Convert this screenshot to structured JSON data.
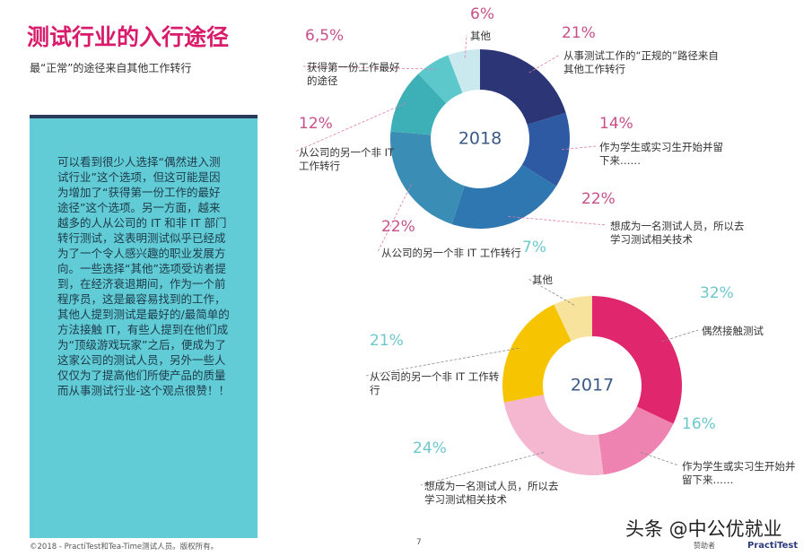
{
  "header": {
    "title": "测试行业的入行途径",
    "subtitle": "最“正常”的途径来自其他工作转行"
  },
  "sidebar": {
    "text": "可以看到很少人选择“偶然进入测试行业”这个选项，但这可能是因为增加了“获得第一份工作的最好途径”这个选项。另一方面，越来越多的人从公司的 IT 和非 IT 部门转行测试，这表明测试似乎已经成为了一个令人感兴趣的职业发展方向。一些选择“其他”选项受访者提到，在经济衰退期间，作为一个前程序员，这是最容易找到的工作，其他人提到测试是最好的/最简单的方法接触 IT，有些人提到在他们成为“顶级游戏玩家”之后，便成为了这家公司的测试人员，另外一些人仅仅为了提高他们所使产品的质量而从事测试行业-这个观点很赞！！"
  },
  "footer": {
    "copyright": "©2018 - PractiTest和Tea-Time测试人员。版权所有。",
    "page": "7",
    "watermark": "头条 @中公优就业",
    "sponsor": "赞助者",
    "brand": "PractiTest"
  },
  "chart_data": [
    {
      "type": "pie",
      "title": "2018",
      "categories": [
        "从事测试工作的“正规的”路径来自其他工作转行",
        "作为学生或实习生开始并留下来……",
        "想成为一名测试人员，所以去学习测试相关技术",
        "从公司的另一个非 IT 工作转行",
        "从公司的另一个非 IT 工作转行",
        "获得第一份工作最好的途径",
        "其他"
      ],
      "values": [
        21,
        14,
        22,
        22,
        12,
        6.5,
        6
      ],
      "value_labels": [
        "21%",
        "14%",
        "22%",
        "22%",
        "12%",
        "6,5%",
        "6%"
      ],
      "colors": [
        "#2c3677",
        "#2d5aa3",
        "#2f77b1",
        "#3a8db5",
        "#3cb0b6",
        "#5cc8cc",
        "#c9e9ee"
      ]
    },
    {
      "type": "pie",
      "title": "2017",
      "categories": [
        "偶然接触测试",
        "作为学生或实习生开始并留下来……",
        "想成为一名测试人员，所以去学习测试相关技术",
        "从公司的另一个非 IT 工作转行",
        "其他"
      ],
      "values": [
        32,
        16,
        24,
        21,
        7
      ],
      "value_labels": [
        "32%",
        "16%",
        "24%",
        "21%",
        "7%"
      ],
      "colors": [
        "#e0266c",
        "#ee83b2",
        "#f5b6d0",
        "#f6c400",
        "#f7e39c"
      ]
    }
  ]
}
